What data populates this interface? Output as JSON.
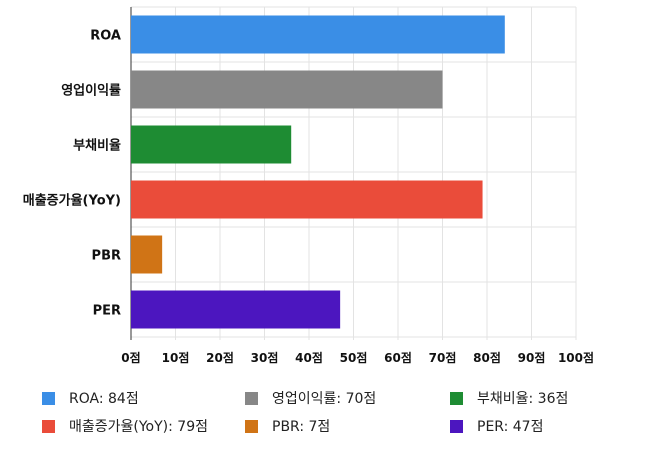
{
  "chart_data": {
    "type": "bar",
    "orientation": "horizontal",
    "categories": [
      "ROA",
      "영업이익률",
      "부채비율",
      "매출증가율(YoY)",
      "PBR",
      "PER"
    ],
    "values": [
      84,
      70,
      36,
      79,
      7,
      47
    ],
    "colors": [
      "#3a8ee6",
      "#878787",
      "#1e8c33",
      "#ea4c3a",
      "#d07416",
      "#4c16bf"
    ],
    "xlim": [
      0,
      100
    ],
    "x_ticks": [
      0,
      10,
      20,
      30,
      40,
      50,
      60,
      70,
      80,
      90,
      100
    ],
    "tick_labels": [
      "0점",
      "10점",
      "20점",
      "30점",
      "40점",
      "50점",
      "60점",
      "70점",
      "80점",
      "90점",
      "100점"
    ],
    "grid": true,
    "legend_position": "bottom",
    "legend": [
      "ROA: 84점",
      "영업이익률: 70점",
      "부채비율: 36점",
      "매출증가율(YoY): 79점",
      "PBR: 7점",
      "PER: 47점"
    ]
  }
}
